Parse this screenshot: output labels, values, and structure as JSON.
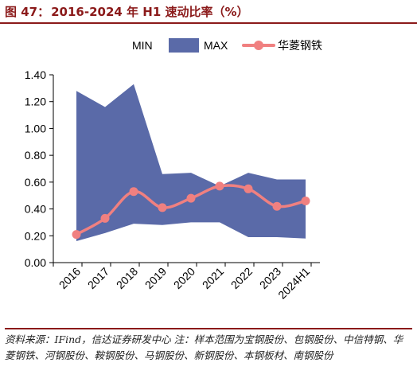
{
  "header": {
    "figure_label": "图 47：",
    "title": "2016-2024 年 H1 速动比率（%）"
  },
  "colors": {
    "title": "#8b1a1a",
    "band": "#5a6aa8",
    "line": "#f08080",
    "axis": "#000000"
  },
  "legend": {
    "min_label": "MIN",
    "max_label": "MAX",
    "line_label": "华菱钢铁"
  },
  "chart_data": {
    "type": "area",
    "categories": [
      "2016",
      "2017",
      "2018",
      "2019",
      "2020",
      "2021",
      "2022",
      "2023",
      "2024H1"
    ],
    "ylim": [
      0,
      1.4
    ],
    "yticks": [
      "0.00",
      "0.20",
      "0.40",
      "0.60",
      "0.80",
      "1.00",
      "1.20",
      "1.40"
    ],
    "legend_position": "top",
    "series": [
      {
        "name": "MIN",
        "values": [
          0.16,
          0.22,
          0.29,
          0.28,
          0.3,
          0.3,
          0.19,
          0.19,
          0.18
        ]
      },
      {
        "name": "MAX",
        "values": [
          1.28,
          1.16,
          1.33,
          0.66,
          0.67,
          0.57,
          0.67,
          0.62,
          0.62
        ]
      },
      {
        "name": "华菱钢铁",
        "values": [
          0.21,
          0.33,
          0.53,
          0.41,
          0.48,
          0.57,
          0.55,
          0.42,
          0.46
        ]
      }
    ]
  },
  "footer": {
    "source": "资料来源：IFind，信达证券研发中心  注：样本范围为宝钢股份、包钢股份、中信特钢、华菱钢铁、河钢股份、鞍钢股份、马钢股份、新钢股份、本钢板材、南钢股份"
  }
}
